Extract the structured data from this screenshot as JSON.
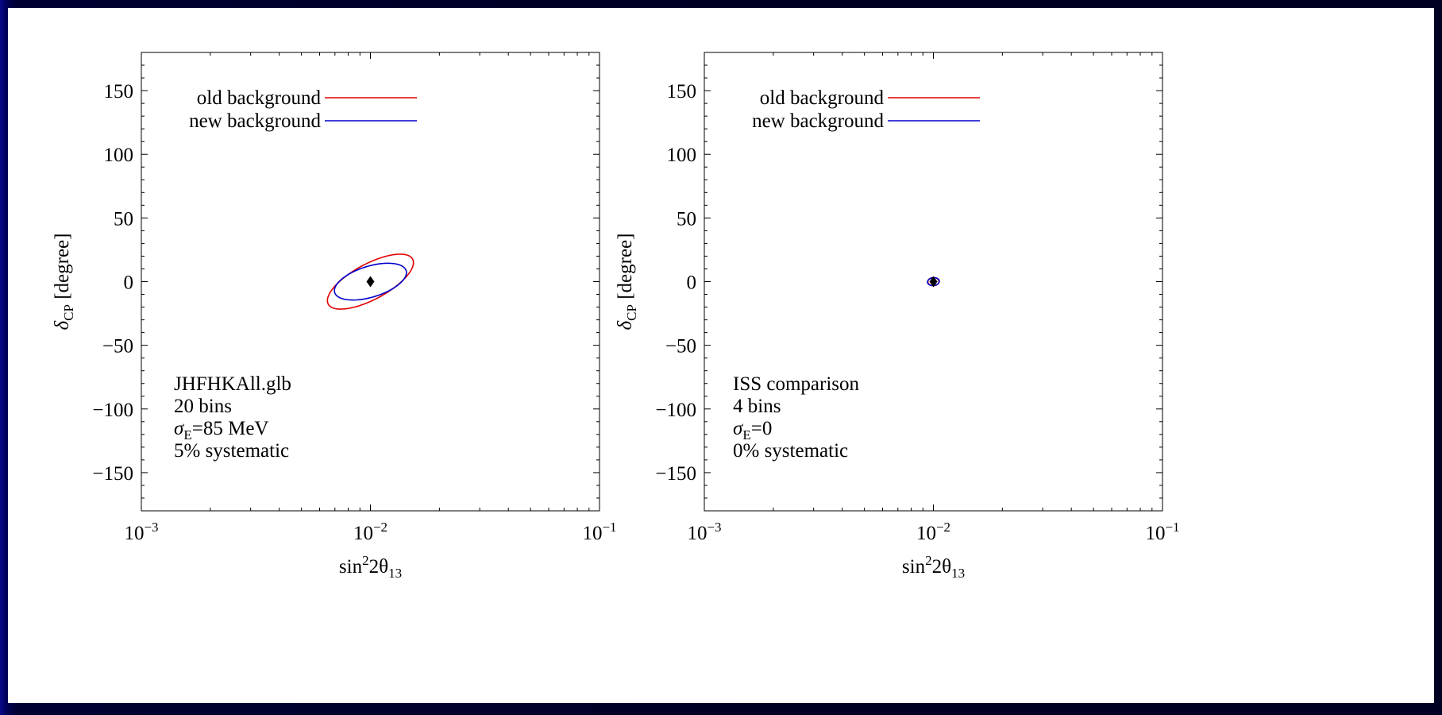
{
  "chart_data": [
    {
      "type": "line",
      "xscale": "log",
      "xlim": [
        0.001,
        0.1
      ],
      "ylim": [
        -180,
        180
      ],
      "xlabel_main": "sin",
      "xlabel_sup": "2",
      "xlabel_mid": "2θ",
      "xlabel_sub": "13",
      "ylabel_main": "δ",
      "ylabel_sub": "CP",
      "ylabel_rest": " [degree]",
      "yticks": [
        150,
        100,
        50,
        0,
        -50,
        -100,
        -150
      ],
      "ytick_labels": [
        "150",
        "100",
        "50",
        "0",
        "−50",
        "−100",
        "−150"
      ],
      "xticks": [
        {
          "value": 0.001,
          "base": "10",
          "exp": "−3"
        },
        {
          "value": 0.01,
          "base": "10",
          "exp": "−2"
        },
        {
          "value": 0.1,
          "base": "10",
          "exp": "−1"
        }
      ],
      "best_fit": {
        "x": 0.01,
        "y": 0
      },
      "series": [
        {
          "name": "old background",
          "color": "#e00000",
          "ellipse": {
            "center_log10_x": -2.0,
            "center_y": 0,
            "semi_major_log": 0.215,
            "semi_minor_log": 0.085,
            "y_per_log": 160,
            "angle_deg": 32
          }
        },
        {
          "name": "new background",
          "color": "#0000cc",
          "ellipse": {
            "center_log10_x": -2.0,
            "center_y": 0,
            "semi_major_log": 0.165,
            "semi_minor_log": 0.075,
            "y_per_log": 160,
            "angle_deg": 20
          }
        }
      ],
      "notes": [
        {
          "text": "JHFHKAll.glb"
        },
        {
          "text": "20 bins"
        },
        {
          "main": "σ",
          "sub": "E",
          "rest": "=85 MeV"
        },
        {
          "text": "5% systematic"
        }
      ]
    },
    {
      "type": "line",
      "xscale": "log",
      "xlim": [
        0.001,
        0.1
      ],
      "ylim": [
        -180,
        180
      ],
      "xlabel_main": "sin",
      "xlabel_sup": "2",
      "xlabel_mid": "2θ",
      "xlabel_sub": "13",
      "ylabel_main": "δ",
      "ylabel_sub": "CP",
      "ylabel_rest": " [degree]",
      "yticks": [
        150,
        100,
        50,
        0,
        -50,
        -100,
        -150
      ],
      "ytick_labels": [
        "150",
        "100",
        "50",
        "0",
        "−50",
        "−100",
        "−150"
      ],
      "xticks": [
        {
          "value": 0.001,
          "base": "10",
          "exp": "−3"
        },
        {
          "value": 0.01,
          "base": "10",
          "exp": "−2"
        },
        {
          "value": 0.1,
          "base": "10",
          "exp": "−1"
        }
      ],
      "best_fit": {
        "x": 0.01,
        "y": 0
      },
      "series": [
        {
          "name": "old background",
          "color": "#e00000",
          "ellipse": {
            "center_log10_x": -2.0,
            "center_y": 0,
            "semi_major_log": 0.024,
            "semi_minor_log": 0.02,
            "y_per_log": 160,
            "angle_deg": 0
          }
        },
        {
          "name": "new background",
          "color": "#0000cc",
          "ellipse": {
            "center_log10_x": -2.0,
            "center_y": 0,
            "semi_major_log": 0.026,
            "semi_minor_log": 0.019,
            "y_per_log": 160,
            "angle_deg": 10
          }
        }
      ],
      "notes": [
        {
          "text": "ISS comparison"
        },
        {
          "text": "4 bins"
        },
        {
          "main": "σ",
          "sub": "E",
          "rest": "=0"
        },
        {
          "text": "0% systematic"
        }
      ]
    }
  ]
}
